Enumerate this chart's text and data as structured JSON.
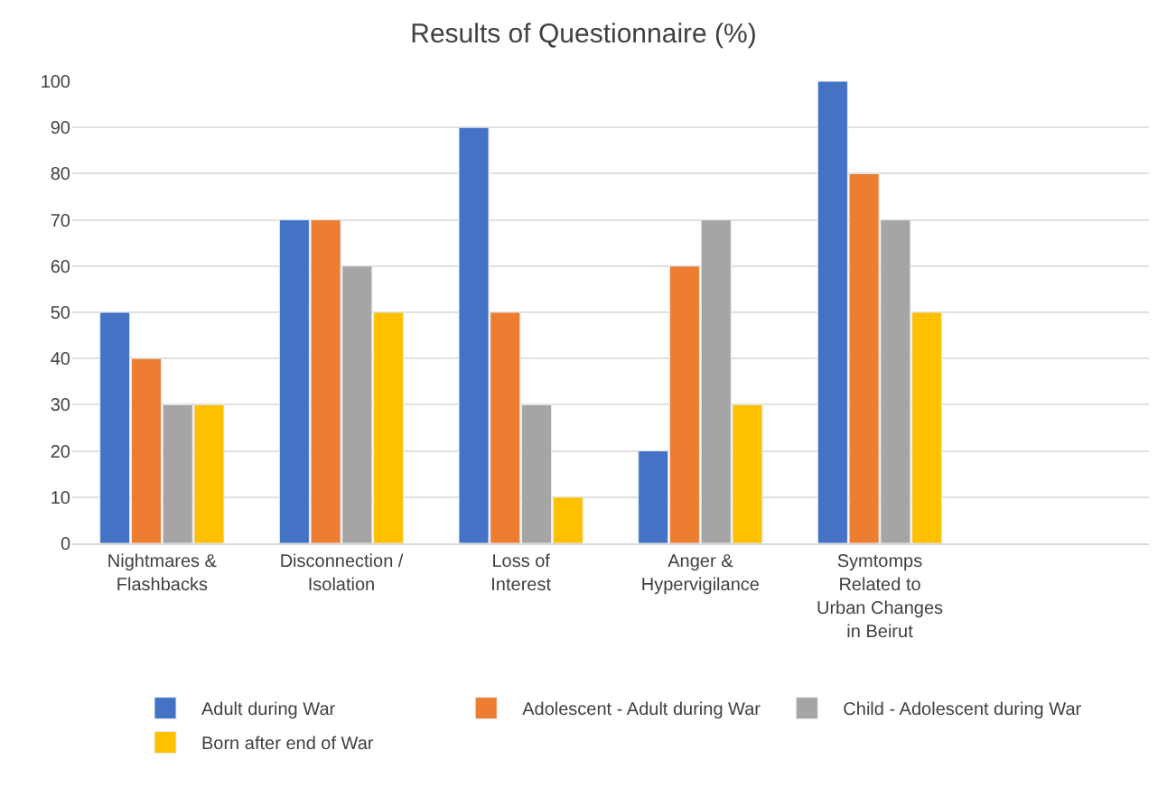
{
  "chart_data": {
    "type": "bar",
    "title": "Results of Questionnaire (%)",
    "categories": [
      "Nightmares & Flashbacks",
      "Disconnection / Isolation",
      "Loss of Interest",
      "Anger & Hypervigilance",
      "Symtomps Related to Urban Changes in Beirut",
      null
    ],
    "series": [
      {
        "name": "Adult during War",
        "color": "#4472c4",
        "values": [
          50,
          70,
          90,
          20,
          100,
          null
        ]
      },
      {
        "name": "Adolescent - Adult during War",
        "color": "#ed7d31",
        "values": [
          40,
          70,
          50,
          60,
          80,
          null
        ]
      },
      {
        "name": "Child - Adolescent during War",
        "color": "#a5a5a5",
        "values": [
          30,
          60,
          30,
          70,
          70,
          null
        ]
      },
      {
        "name": "Born after end of War",
        "color": "#ffc000",
        "values": [
          30,
          50,
          10,
          30,
          50,
          null
        ]
      }
    ],
    "ylim": [
      0,
      100
    ],
    "yticks": [
      0,
      10,
      20,
      30,
      40,
      50,
      60,
      70,
      80,
      90,
      100
    ],
    "grid": "y",
    "legend": "bottom"
  }
}
